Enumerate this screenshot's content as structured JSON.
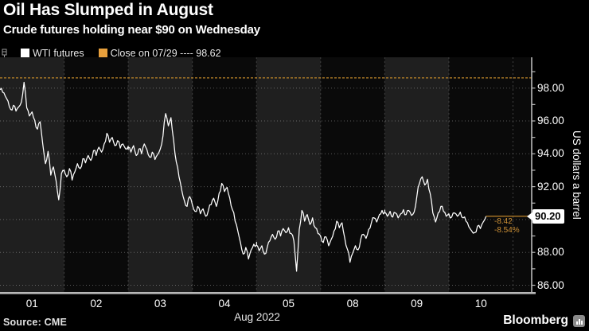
{
  "header": {
    "title": "Oil Has Slumped in August",
    "subtitle": "Crude futures holding near $90 on Wednesday"
  },
  "legend": {
    "items": [
      {
        "label": "WTI futures",
        "swatch": "#ffffff"
      },
      {
        "label": "Close on 07/29 ---- 98.62",
        "swatch": "#E8A03C"
      }
    ]
  },
  "footer": {
    "source": "Source: CME",
    "brand": "Bloomberg"
  },
  "colors": {
    "background": "#000000",
    "accent_orange": "#C1872B",
    "band_light": "#1f1f1f",
    "band_dark": "#0a0a0a",
    "axis": "#b8b8b8",
    "series": "#ffffff"
  },
  "chart_data": {
    "type": "line",
    "title": "Oil Has Slumped in August",
    "subtitle": "Crude futures holding near $90 on Wednesday",
    "x_axis": {
      "period_label": "Aug 2022",
      "day_labels": [
        "01",
        "02",
        "03",
        "04",
        "05",
        "08",
        "09",
        "10"
      ]
    },
    "y_axis": {
      "title": "US dollars a barrel",
      "range_min": 85.6,
      "range_max": 99.8,
      "minor_tick_step": 1,
      "labeled_ticks": [
        {
          "value": 98,
          "label": "98.00"
        },
        {
          "value": 96,
          "label": "96.00"
        },
        {
          "value": 94,
          "label": "94.00"
        },
        {
          "value": 92,
          "label": "92.00"
        },
        {
          "value": 90,
          "label": "90.00"
        },
        {
          "value": 88,
          "label": "88.00"
        },
        {
          "value": 86,
          "label": "86.00"
        }
      ]
    },
    "reference_line": {
      "label": "Close on 07/29",
      "value": 98.62,
      "style": "dashed",
      "color": "#BE8629"
    },
    "last_price": {
      "value": "90.20",
      "numeric": 90.2,
      "net_change": "-8.42",
      "pct_change": "-8.54%",
      "color": "#CE9136"
    },
    "bands": {
      "light_day_indexes": [
        0,
        2,
        4,
        6
      ]
    },
    "series": [
      {
        "name": "WTI futures",
        "color": "#ffffff",
        "days": [
          {
            "label": "01",
            "values": [
              97.9,
              97.75,
              97.5,
              97.2,
              96.7,
              96.95,
              96.6,
              96.85,
              97.15,
              98.35,
              96.8,
              96.3,
              96.55,
              96.05,
              95.5,
              95.95,
              94.6,
              93.4,
              94.15,
              92.7,
              93.2,
              92.35,
              91.2,
              92.8,
              92.95
            ]
          },
          {
            "label": "02",
            "values": [
              93.0,
              92.6,
              93.1,
              92.4,
              92.9,
              93.4,
              93.1,
              93.7,
              93.45,
              93.9,
              93.6,
              94.2,
              93.9,
              94.4,
              94.1,
              94.6,
              95.25,
              94.7,
              95.0,
              94.5,
              94.8,
              94.35,
              94.6,
              94.3,
              94.45
            ]
          },
          {
            "label": "03",
            "values": [
              94.4,
              94.1,
              94.5,
              93.9,
              94.3,
              94.0,
              94.6,
              94.25,
              93.8,
              94.1,
              93.65,
              93.95,
              94.3,
              95.1,
              96.45,
              95.7,
              96.2,
              94.8,
              93.5,
              92.6,
              91.8,
              91.15,
              90.8,
              91.4,
              90.9
            ]
          },
          {
            "label": "04",
            "values": [
              90.9,
              90.5,
              90.8,
              90.35,
              90.65,
              90.2,
              90.55,
              90.9,
              91.3,
              90.8,
              91.6,
              92.2,
              91.7,
              91.95,
              91.3,
              90.6,
              89.9,
              89.3,
              88.6,
              87.9,
              88.3,
              87.6,
              88.15,
              88.5,
              88.45
            ]
          },
          {
            "label": "05",
            "values": [
              88.45,
              88.1,
              88.4,
              87.9,
              88.3,
              88.7,
              89.1,
              88.8,
              89.3,
              89.0,
              89.45,
              89.2,
              89.5,
              89.15,
              88.7,
              86.85,
              89.4,
              90.55,
              89.9,
              90.3,
              89.7,
              90.1,
              89.5,
              89.15,
              89.0
            ]
          },
          {
            "label": "08",
            "values": [
              89.0,
              88.6,
              88.95,
              88.4,
              88.8,
              89.3,
              89.9,
              89.5,
              89.8,
              88.9,
              88.2,
              87.4,
              87.95,
              88.4,
              88.15,
              88.8,
              89.1,
              88.85,
              89.4,
              89.8,
              90.1,
              89.85,
              90.3,
              90.55,
              90.45
            ]
          },
          {
            "label": "09",
            "values": [
              90.45,
              90.2,
              90.5,
              90.15,
              90.4,
              90.1,
              90.35,
              90.6,
              90.3,
              90.55,
              90.25,
              90.45,
              91.4,
              92.2,
              92.6,
              92.1,
              92.45,
              91.6,
              90.4,
              89.85,
              90.4,
              90.8,
              90.5,
              90.2,
              90.35
            ]
          },
          {
            "label": "10",
            "values": [
              90.35,
              90.15,
              90.4,
              90.2,
              90.45,
              90.1,
              89.9,
              89.55,
              89.3,
              89.2,
              89.6,
              89.45,
              89.85,
              90.2
            ],
            "span": 0.58
          }
        ]
      }
    ]
  }
}
